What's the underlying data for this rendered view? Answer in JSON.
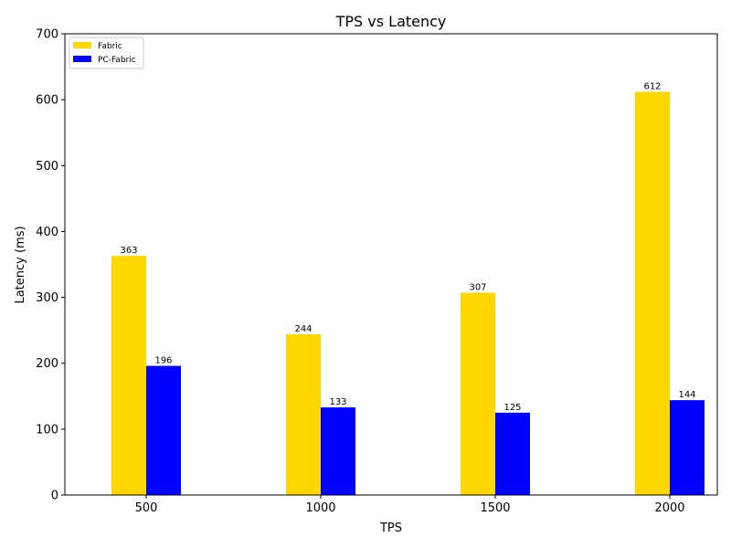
{
  "chart_data": {
    "type": "bar",
    "title": "TPS vs Latency",
    "xlabel": "TPS",
    "ylabel": "Latency (ms)",
    "categories": [
      "500",
      "1000",
      "1500",
      "2000"
    ],
    "ylim": [
      0,
      700
    ],
    "yticks": [
      0,
      100,
      200,
      300,
      400,
      500,
      600,
      700
    ],
    "series": [
      {
        "name": "Fabric",
        "color": "#FFD700",
        "values": [
          363,
          244,
          307,
          612
        ]
      },
      {
        "name": "PC-Fabric",
        "color": "#0000FF",
        "values": [
          196,
          133,
          125,
          144
        ]
      }
    ],
    "legend": "top-left",
    "grid": false
  }
}
